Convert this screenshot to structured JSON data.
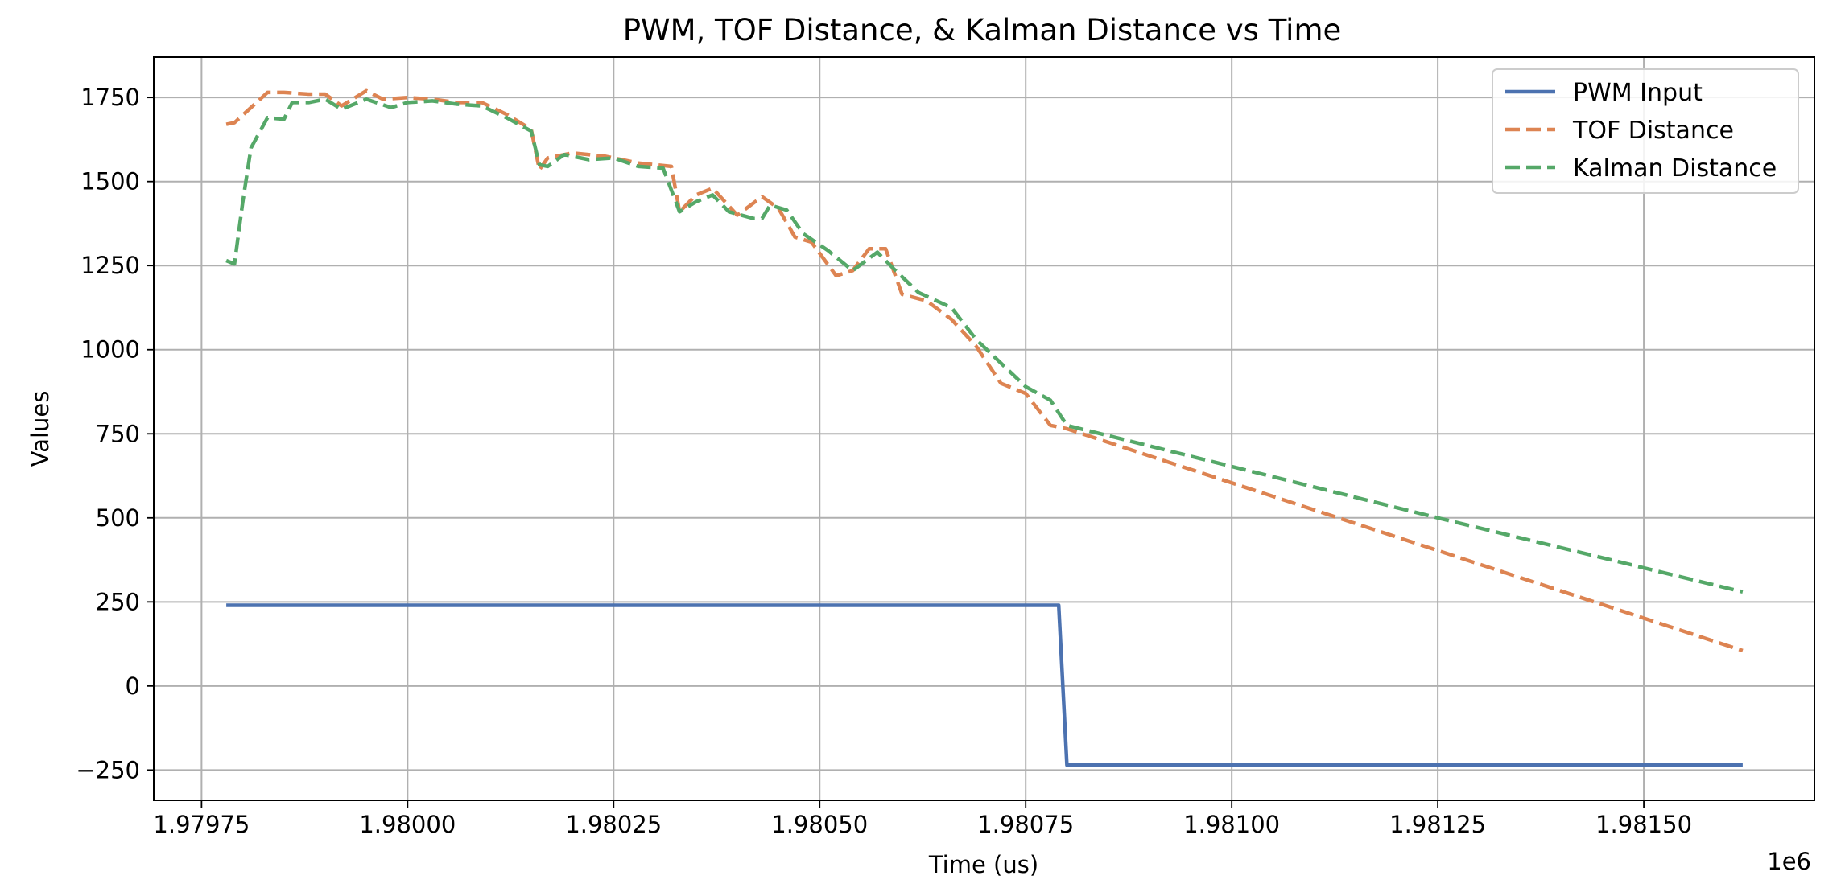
{
  "chart_data": {
    "type": "line",
    "title": "PWM, TOF Distance, & Kalman Distance vs Time",
    "xlabel": "Time (us)",
    "ylabel": "Values",
    "x_offset_label": "1e6",
    "xlim": [
      1.979692,
      1.981707
    ],
    "ylim": [
      -340,
      1870
    ],
    "x_ticks": [
      1.97975,
      1.98,
      1.98025,
      1.9805,
      1.98075,
      1.981,
      1.98125,
      1.9815
    ],
    "x_tick_labels": [
      "1.97975",
      "1.98000",
      "1.98025",
      "1.98050",
      "1.98075",
      "1.98100",
      "1.98125",
      "1.98150"
    ],
    "y_ticks": [
      -250,
      0,
      250,
      500,
      750,
      1000,
      1250,
      1500,
      1750
    ],
    "y_tick_labels": [
      "−250",
      "0",
      "250",
      "500",
      "750",
      "1000",
      "1250",
      "1500",
      "1750"
    ],
    "grid": true,
    "legend_position": "top-right",
    "series": [
      {
        "name": "PWM Input",
        "color": "#4c72b0",
        "style": "solid",
        "x": [
          1.97978,
          1.98079,
          1.9808,
          1.98162
        ],
        "y": [
          240,
          240,
          -235,
          -235
        ]
      },
      {
        "name": "TOF Distance",
        "color": "#dd8452",
        "style": "dashed",
        "x": [
          1.97978,
          1.97979,
          1.97981,
          1.97983,
          1.97985,
          1.97988,
          1.9799,
          1.97992,
          1.97995,
          1.97997,
          1.98,
          1.98003,
          1.98006,
          1.98009,
          1.98012,
          1.98015,
          1.98016,
          1.98017,
          1.9802,
          1.98024,
          1.98028,
          1.98032,
          1.98033,
          1.98035,
          1.98037,
          1.9804,
          1.98043,
          1.98045,
          1.98047,
          1.98049,
          1.98052,
          1.98054,
          1.98056,
          1.98058,
          1.9806,
          1.98063,
          1.98066,
          1.98069,
          1.98072,
          1.98075,
          1.98078,
          1.9808,
          1.98162
        ],
        "y": [
          1670,
          1675,
          1720,
          1765,
          1765,
          1760,
          1760,
          1725,
          1770,
          1745,
          1750,
          1745,
          1735,
          1735,
          1700,
          1655,
          1535,
          1570,
          1585,
          1575,
          1555,
          1545,
          1410,
          1460,
          1480,
          1400,
          1455,
          1420,
          1335,
          1320,
          1220,
          1235,
          1300,
          1300,
          1165,
          1145,
          1090,
          1010,
          900,
          870,
          775,
          765,
          105
        ]
      },
      {
        "name": "Kalman Distance",
        "color": "#55a868",
        "style": "dashed",
        "x": [
          1.97978,
          1.97979,
          1.9798,
          1.97981,
          1.97983,
          1.97985,
          1.97986,
          1.97988,
          1.9799,
          1.97992,
          1.97995,
          1.97998,
          1.98,
          1.98003,
          1.98006,
          1.98009,
          1.98012,
          1.98015,
          1.98016,
          1.98017,
          1.98019,
          1.98022,
          1.98025,
          1.98028,
          1.98031,
          1.98033,
          1.98035,
          1.98037,
          1.98039,
          1.98042,
          1.98043,
          1.98044,
          1.98046,
          1.98048,
          1.98051,
          1.98054,
          1.98057,
          1.98059,
          1.98062,
          1.98066,
          1.98069,
          1.98072,
          1.98075,
          1.98078,
          1.9808,
          1.98125,
          1.98162
        ],
        "y": [
          1265,
          1255,
          1440,
          1600,
          1690,
          1685,
          1735,
          1735,
          1745,
          1715,
          1745,
          1720,
          1735,
          1740,
          1730,
          1725,
          1690,
          1650,
          1550,
          1545,
          1580,
          1565,
          1570,
          1545,
          1540,
          1410,
          1440,
          1460,
          1410,
          1390,
          1390,
          1430,
          1415,
          1345,
          1295,
          1235,
          1290,
          1240,
          1170,
          1125,
          1030,
          960,
          890,
          850,
          775,
          500,
          280
        ]
      }
    ]
  }
}
